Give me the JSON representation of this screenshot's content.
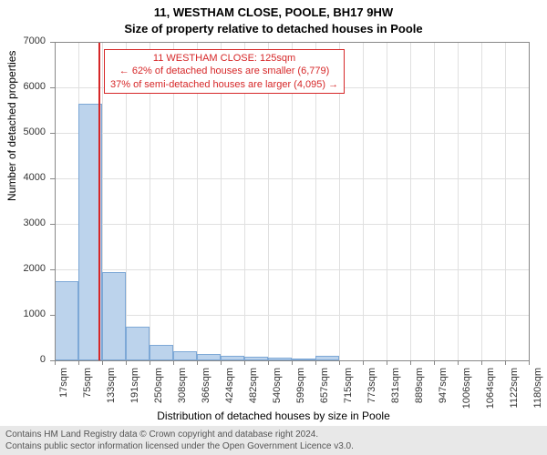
{
  "chart": {
    "type": "histogram",
    "title": "11, WESTHAM CLOSE, POOLE, BH17 9HW",
    "subtitle": "Size of property relative to detached houses in Poole",
    "xlabel": "Distribution of detached houses by size in Poole",
    "ylabel": "Number of detached properties",
    "ylim": [
      0,
      7000
    ],
    "ytick_step": 1000,
    "y_ticks": [
      0,
      1000,
      2000,
      3000,
      4000,
      5000,
      6000,
      7000
    ],
    "x_tick_labels": [
      "17sqm",
      "75sqm",
      "133sqm",
      "191sqm",
      "250sqm",
      "308sqm",
      "366sqm",
      "424sqm",
      "482sqm",
      "540sqm",
      "599sqm",
      "657sqm",
      "715sqm",
      "773sqm",
      "831sqm",
      "889sqm",
      "947sqm",
      "1006sqm",
      "1064sqm",
      "1122sqm",
      "1180sqm"
    ],
    "bar_values": [
      1750,
      5650,
      1950,
      750,
      350,
      200,
      150,
      100,
      80,
      60,
      50,
      100,
      0,
      0,
      0,
      0,
      0,
      0,
      0,
      0
    ],
    "bar_color": "#bcd3ec",
    "bar_border_color": "#7da8d6",
    "grid_color": "#e0e0e0",
    "background_color": "#ffffff",
    "axis_color": "#888888",
    "reference_line": {
      "value": 125,
      "color": "#d62728"
    },
    "annotation": {
      "lines": [
        "11 WESTHAM CLOSE: 125sqm",
        "← 62% of detached houses are smaller (6,779)",
        "37% of semi-detached houses are larger (4,095) →"
      ],
      "border_color": "#d62728",
      "text_color": "#d62728"
    }
  },
  "attribution": {
    "line1": "Contains HM Land Registry data © Crown copyright and database right 2024.",
    "line2": "Contains public sector information licensed under the Open Government Licence v3.0."
  }
}
